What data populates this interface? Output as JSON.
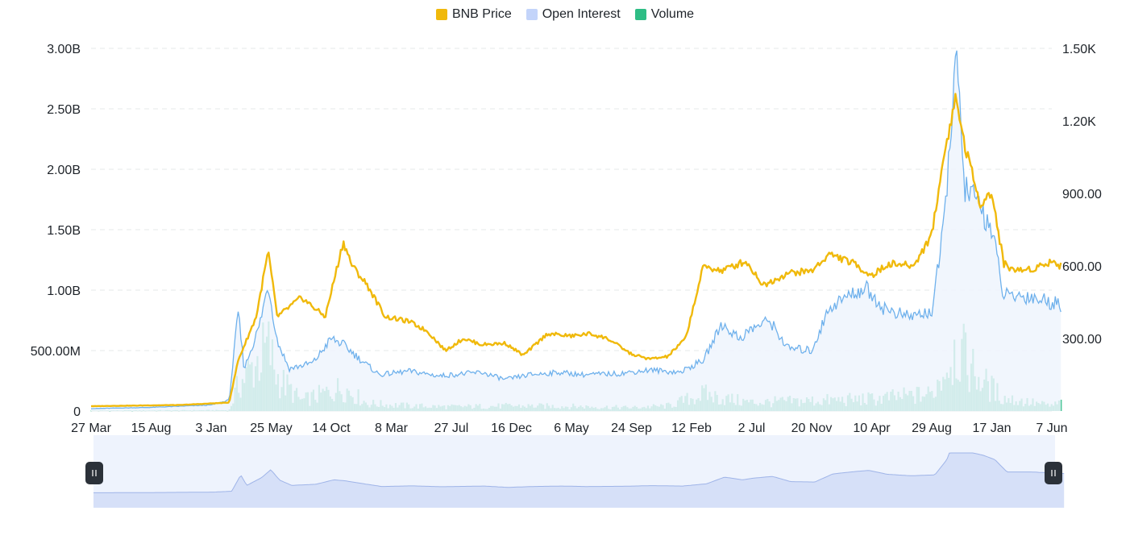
{
  "legend": {
    "price": {
      "label": "BNB Price",
      "color": "#f0b90b"
    },
    "oi": {
      "label": "Open Interest",
      "color": "#c3d4fa"
    },
    "volume": {
      "label": "Volume",
      "color": "#2ebd85"
    }
  },
  "chart_data": {
    "type": "line",
    "x_ticks": [
      "27 Mar",
      "15 Aug",
      "3 Jan",
      "25 May",
      "14 Oct",
      "8 Mar",
      "27 Jul",
      "16 Dec",
      "6 May",
      "24 Sep",
      "12 Feb",
      "2 Jul",
      "20 Nov",
      "10 Apr",
      "29 Aug",
      "17 Jan",
      "7 Jun"
    ],
    "y_left_ticks": [
      "0",
      "500.00M",
      "1.00B",
      "1.50B",
      "2.00B",
      "2.50B",
      "3.00B"
    ],
    "y_right_ticks": [
      "300.00",
      "600.00",
      "900.00",
      "1.20K",
      "1.50K"
    ],
    "y_left_range": [
      0,
      3000000000
    ],
    "y_right_range": [
      0,
      1500
    ],
    "grid": true,
    "legend_position": "top-center",
    "series": [
      {
        "name": "BNB Price",
        "axis": "right",
        "color": "#f0b90b",
        "points": [
          [
            0,
            20
          ],
          [
            1.5,
            25
          ],
          [
            2.3,
            35
          ],
          [
            2.45,
            210
          ],
          [
            2.75,
            390
          ],
          [
            2.95,
            660
          ],
          [
            3.1,
            390
          ],
          [
            3.5,
            470
          ],
          [
            3.9,
            390
          ],
          [
            4.2,
            700
          ],
          [
            4.35,
            600
          ],
          [
            4.6,
            520
          ],
          [
            4.9,
            390
          ],
          [
            5.3,
            370
          ],
          [
            5.6,
            330
          ],
          [
            5.9,
            250
          ],
          [
            6.2,
            300
          ],
          [
            6.5,
            275
          ],
          [
            6.9,
            280
          ],
          [
            7.2,
            230
          ],
          [
            7.6,
            320
          ],
          [
            8,
            310
          ],
          [
            8.3,
            320
          ],
          [
            8.6,
            300
          ],
          [
            9,
            235
          ],
          [
            9.3,
            215
          ],
          [
            9.6,
            225
          ],
          [
            9.9,
            300
          ],
          [
            10.2,
            600
          ],
          [
            10.5,
            580
          ],
          [
            10.9,
            620
          ],
          [
            11.2,
            520
          ],
          [
            11.6,
            570
          ],
          [
            12,
            580
          ],
          [
            12.3,
            650
          ],
          [
            12.7,
            610
          ],
          [
            13,
            560
          ],
          [
            13.3,
            610
          ],
          [
            13.7,
            600
          ],
          [
            14,
            730
          ],
          [
            14.2,
            1050
          ],
          [
            14.4,
            1300
          ],
          [
            14.55,
            1100
          ],
          [
            14.8,
            860
          ],
          [
            15,
            900
          ],
          [
            15.2,
            610
          ],
          [
            15.4,
            580
          ],
          [
            15.7,
            590
          ],
          [
            16,
            620
          ],
          [
            16.15,
            600
          ]
        ]
      },
      {
        "name": "Open Interest",
        "axis": "left",
        "color": "#6fb1ec",
        "fill": "#eef4fd",
        "points": [
          [
            0,
            20000000
          ],
          [
            1,
            30000000
          ],
          [
            2,
            50000000
          ],
          [
            2.3,
            90000000
          ],
          [
            2.45,
            820000000
          ],
          [
            2.55,
            350000000
          ],
          [
            2.8,
            700000000
          ],
          [
            2.95,
            1050000000
          ],
          [
            3.1,
            580000000
          ],
          [
            3.3,
            350000000
          ],
          [
            3.7,
            400000000
          ],
          [
            4,
            600000000
          ],
          [
            4.2,
            550000000
          ],
          [
            4.5,
            420000000
          ],
          [
            4.8,
            300000000
          ],
          [
            5.3,
            330000000
          ],
          [
            5.8,
            290000000
          ],
          [
            6,
            300000000
          ],
          [
            6.5,
            320000000
          ],
          [
            6.9,
            260000000
          ],
          [
            7.3,
            300000000
          ],
          [
            7.8,
            320000000
          ],
          [
            8.2,
            300000000
          ],
          [
            8.8,
            310000000
          ],
          [
            9.3,
            340000000
          ],
          [
            9.8,
            320000000
          ],
          [
            10.2,
            420000000
          ],
          [
            10.5,
            720000000
          ],
          [
            10.8,
            600000000
          ],
          [
            11,
            680000000
          ],
          [
            11.3,
            750000000
          ],
          [
            11.6,
            520000000
          ],
          [
            12,
            500000000
          ],
          [
            12.3,
            860000000
          ],
          [
            12.6,
            950000000
          ],
          [
            12.9,
            1020000000
          ],
          [
            13.2,
            850000000
          ],
          [
            13.6,
            780000000
          ],
          [
            14,
            820000000
          ],
          [
            14.2,
            1500000000
          ],
          [
            14.4,
            2950000000
          ],
          [
            14.55,
            1850000000
          ],
          [
            14.8,
            1700000000
          ],
          [
            15,
            1500000000
          ],
          [
            15.2,
            950000000
          ],
          [
            15.6,
            950000000
          ],
          [
            16,
            900000000
          ],
          [
            16.15,
            880000000
          ]
        ]
      },
      {
        "name": "Volume",
        "axis": "left",
        "color": "#2ebd85",
        "points": [
          [
            0,
            5000000
          ],
          [
            2.3,
            10000000
          ],
          [
            2.45,
            300000000
          ],
          [
            2.95,
            750000000
          ],
          [
            3.1,
            400000000
          ],
          [
            3.5,
            120000000
          ],
          [
            4.2,
            280000000
          ],
          [
            4.6,
            90000000
          ],
          [
            5.3,
            60000000
          ],
          [
            6,
            50000000
          ],
          [
            7,
            60000000
          ],
          [
            8,
            55000000
          ],
          [
            9,
            40000000
          ],
          [
            9.6,
            60000000
          ],
          [
            10.2,
            200000000
          ],
          [
            10.5,
            150000000
          ],
          [
            11,
            100000000
          ],
          [
            12,
            120000000
          ],
          [
            13,
            140000000
          ],
          [
            14,
            200000000
          ],
          [
            14.4,
            750000000
          ],
          [
            14.8,
            380000000
          ],
          [
            15.2,
            150000000
          ],
          [
            16,
            60000000
          ],
          [
            16.15,
            100000000
          ]
        ]
      }
    ]
  },
  "navigator": {
    "left_handle_icon": "pause-grip-icon",
    "right_handle_icon": "pause-grip-icon"
  }
}
